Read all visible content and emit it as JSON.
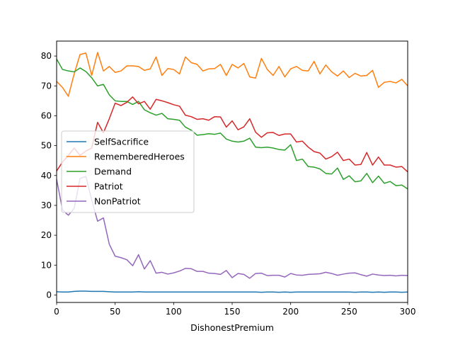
{
  "chart_data": {
    "type": "line",
    "xlabel": "DishonestPremium",
    "ylabel": "",
    "title": "",
    "xlim": [
      0,
      300
    ],
    "ylim": [
      -2.5,
      85
    ],
    "xticks": [
      0,
      50,
      100,
      150,
      200,
      250,
      300
    ],
    "yticks": [
      0,
      10,
      20,
      30,
      40,
      50,
      60,
      70,
      80
    ],
    "grid": false,
    "legend_position": "center-left",
    "x": [
      0,
      5,
      10,
      15,
      20,
      25,
      30,
      35,
      40,
      45,
      50,
      55,
      60,
      65,
      70,
      75,
      80,
      85,
      90,
      95,
      100,
      105,
      110,
      115,
      120,
      125,
      130,
      135,
      140,
      145,
      150,
      155,
      160,
      165,
      170,
      175,
      180,
      185,
      190,
      195,
      200,
      205,
      210,
      215,
      220,
      225,
      230,
      235,
      240,
      245,
      250,
      255,
      260,
      265,
      270,
      275,
      280,
      285,
      290,
      295,
      300
    ],
    "series": [
      {
        "name": "SelfSacrifice",
        "color": "#1f77b4",
        "values": [
          1.1,
          1.0,
          1.0,
          1.2,
          1.3,
          1.3,
          1.2,
          1.2,
          1.2,
          1.1,
          1.0,
          1.0,
          1.0,
          1.0,
          1.1,
          1.0,
          1.0,
          1.0,
          1.0,
          1.0,
          1.0,
          1.0,
          1.0,
          1.0,
          1.0,
          1.0,
          1.0,
          1.0,
          1.0,
          1.0,
          1.0,
          1.0,
          1.0,
          1.0,
          1.0,
          0.9,
          1.0,
          1.0,
          0.9,
          1.0,
          0.9,
          1.0,
          1.0,
          1.0,
          1.0,
          1.0,
          1.0,
          1.0,
          1.0,
          1.0,
          1.0,
          0.9,
          1.0,
          1.0,
          0.9,
          1.0,
          0.9,
          1.0,
          1.0,
          0.9,
          1.0
        ]
      },
      {
        "name": "RememberedHeroes",
        "color": "#ff7f0e",
        "values": [
          71.5,
          69.5,
          66.5,
          74.0,
          80.5,
          81.0,
          73.5,
          81.2,
          75.0,
          76.5,
          74.5,
          75.0,
          76.7,
          76.7,
          76.5,
          75.2,
          75.7,
          79.7,
          73.5,
          75.8,
          75.5,
          74.0,
          79.7,
          77.8,
          77.2,
          75.0,
          75.7,
          75.8,
          77.2,
          73.5,
          77.2,
          76.0,
          77.5,
          73.0,
          72.6,
          79.2,
          75.5,
          73.5,
          76.5,
          73.0,
          75.7,
          76.5,
          75.2,
          75.0,
          78.2,
          74.0,
          77.0,
          74.7,
          73.3,
          75.0,
          72.8,
          74.2,
          73.3,
          73.5,
          75.2,
          69.5,
          71.2,
          71.5,
          71.0,
          72.2,
          70.0
        ]
      },
      {
        "name": "Demand",
        "color": "#2ca02c",
        "values": [
          79.0,
          75.5,
          75.0,
          74.7,
          76.0,
          74.8,
          72.7,
          70.0,
          70.5,
          67.0,
          65.0,
          64.8,
          64.8,
          63.8,
          64.8,
          62.0,
          61.0,
          60.2,
          60.8,
          59.0,
          58.8,
          58.5,
          56.2,
          55.2,
          53.5,
          53.7,
          54.0,
          53.8,
          54.2,
          52.2,
          51.5,
          51.2,
          51.5,
          52.5,
          49.5,
          49.3,
          49.5,
          49.2,
          48.7,
          48.5,
          50.3,
          45.0,
          45.5,
          43.0,
          42.8,
          42.2,
          40.7,
          40.5,
          42.5,
          38.7,
          39.9,
          37.9,
          38.2,
          40.7,
          37.6,
          39.8,
          37.4,
          38.0,
          36.6,
          36.8,
          35.5
        ]
      },
      {
        "name": "Patriot",
        "color": "#d62728",
        "values": [
          41.5,
          44.5,
          46.7,
          49.2,
          46.7,
          48.2,
          49.2,
          57.8,
          54.3,
          59.0,
          64.2,
          63.4,
          64.5,
          66.3,
          64.0,
          64.8,
          62.2,
          65.5,
          65.0,
          64.4,
          63.7,
          63.2,
          60.2,
          59.7,
          58.8,
          59.0,
          58.5,
          59.7,
          59.6,
          56.2,
          58.3,
          55.3,
          56.3,
          59.0,
          54.5,
          52.8,
          54.3,
          54.4,
          53.4,
          53.9,
          53.9,
          51.2,
          51.5,
          49.5,
          48.0,
          47.5,
          45.5,
          46.3,
          47.8,
          45.0,
          45.5,
          43.5,
          43.7,
          47.7,
          43.5,
          46.2,
          43.5,
          43.5,
          42.8,
          43.0,
          41.2
        ]
      },
      {
        "name": "NonPatriot",
        "color": "#9467bd",
        "values": [
          38.7,
          28.5,
          26.7,
          29.0,
          39.0,
          39.7,
          31.8,
          24.7,
          25.8,
          17.0,
          13.0,
          12.5,
          11.8,
          9.8,
          13.5,
          8.7,
          11.5,
          7.3,
          7.6,
          7.0,
          7.4,
          8.0,
          8.9,
          8.8,
          7.9,
          7.9,
          7.3,
          7.2,
          6.9,
          8.2,
          5.8,
          7.2,
          6.9,
          5.6,
          7.2,
          7.3,
          6.5,
          6.6,
          6.6,
          6.0,
          7.2,
          6.7,
          6.6,
          6.9,
          7.0,
          7.1,
          7.6,
          7.2,
          6.6,
          7.0,
          7.3,
          7.4,
          6.8,
          6.3,
          7.0,
          6.7,
          6.5,
          6.6,
          6.4,
          6.6,
          6.5
        ]
      }
    ]
  }
}
